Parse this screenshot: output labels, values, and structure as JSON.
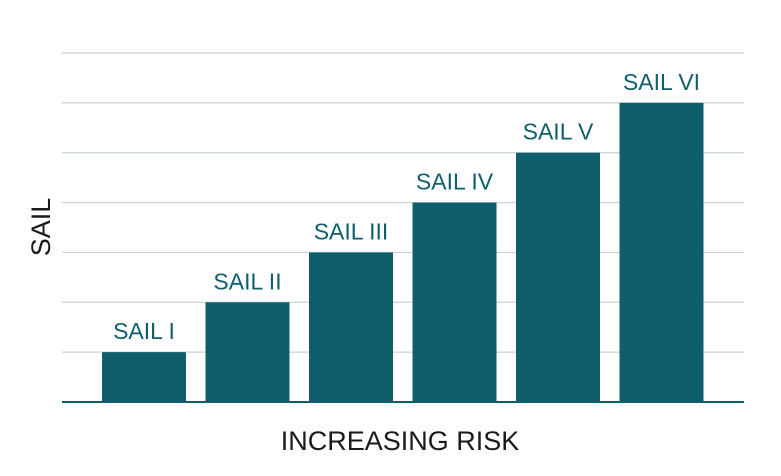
{
  "chart_data": {
    "type": "bar",
    "title": "",
    "xlabel": "INCREASING RISK",
    "ylabel": "SAIL",
    "categories": [
      "SAIL I",
      "SAIL II",
      "SAIL III",
      "SAIL IV",
      "SAIL V",
      "SAIL VI"
    ],
    "values": [
      1,
      2,
      3,
      4,
      5,
      6
    ],
    "data_labels": [
      "SAIL I",
      "SAIL II",
      "SAIL III",
      "SAIL IV",
      "SAIL V",
      "SAIL VI"
    ],
    "ylim": [
      0,
      7
    ],
    "grid": true,
    "legend": "none",
    "colors": {
      "bar": "#0e5e6b",
      "grid": "#c9d3d5",
      "axis": "#0e5e6b",
      "text": "#1a1a1a",
      "label": "#0e5e6b"
    }
  }
}
